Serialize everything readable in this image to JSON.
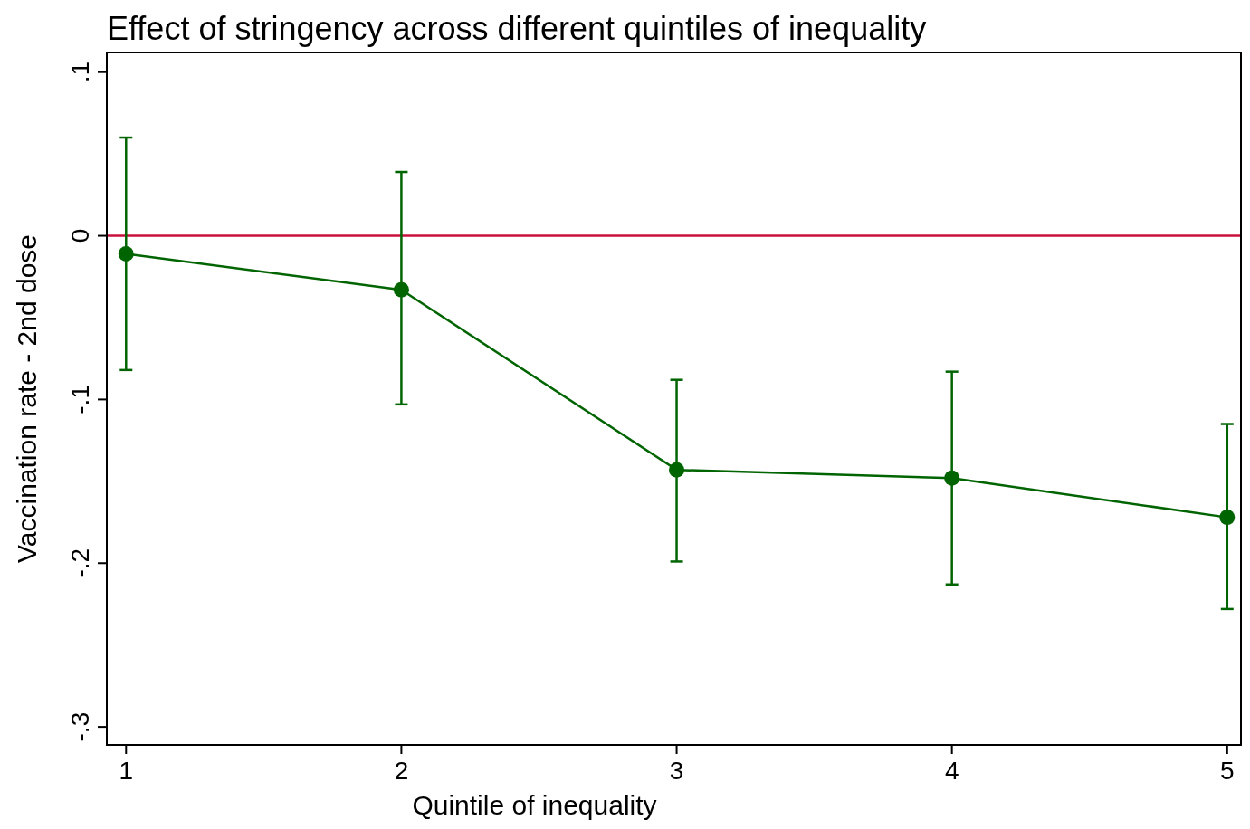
{
  "chart_data": {
    "type": "line",
    "title": "Effect of stringency across different quintiles of inequality",
    "xlabel": "Quintile of inequality",
    "ylabel": "Vaccination rate - 2nd dose",
    "x": [
      1,
      2,
      3,
      4,
      5
    ],
    "series": [
      {
        "color": "#006400",
        "values": [
          -0.011,
          -0.033,
          -0.143,
          -0.148,
          -0.172
        ],
        "errors": [
          [
            -0.082,
            0.06
          ],
          [
            -0.103,
            0.039
          ],
          [
            -0.199,
            -0.088
          ],
          [
            -0.213,
            -0.083
          ],
          [
            -0.228,
            -0.115
          ]
        ]
      }
    ],
    "xlim": [
      0.93,
      5.05
    ],
    "xticks": [
      1,
      2,
      3,
      4,
      5
    ],
    "ylim": [
      -0.311,
      0.112
    ],
    "yticks": [
      {
        "value": 0.1,
        "label": ".1"
      },
      {
        "value": 0,
        "label": "0"
      },
      {
        "value": -0.1,
        "label": "-.1"
      },
      {
        "value": -0.2,
        "label": "-.2"
      },
      {
        "value": -0.3,
        "label": "-.3"
      }
    ],
    "ref_lines": [
      {
        "axis": "y",
        "value": 0,
        "color": "#c8103c"
      }
    ],
    "marker": "circle",
    "line_style": "solid",
    "grid": false
  }
}
